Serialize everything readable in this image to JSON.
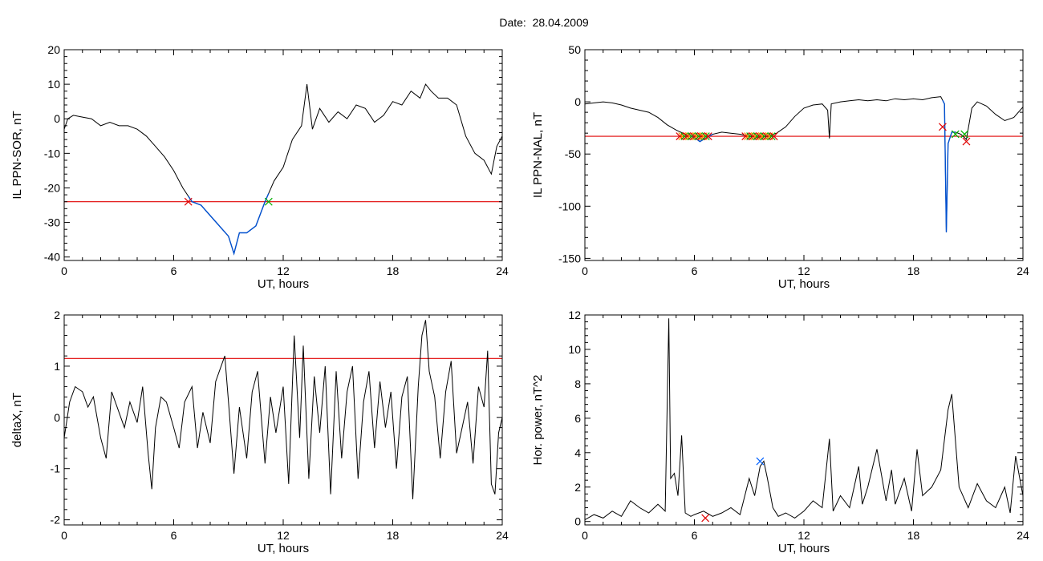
{
  "header": {
    "title": "Date:  28.04.2009"
  },
  "colors": {
    "trace": "#000000",
    "threshold": "#e00000",
    "highlight": "#0050d0",
    "marker_red": "#e00000",
    "marker_green": "#00b000",
    "marker_orange": "#ff9000",
    "marker_blue": "#0060ff"
  },
  "chart_data": [
    {
      "id": "il-sor",
      "type": "line",
      "title": "",
      "xlabel": "UT, hours",
      "ylabel": "IL PPN-SOR, nT",
      "xlim": [
        0,
        24
      ],
      "ylim": [
        -41,
        20
      ],
      "xticks": [
        0,
        6,
        12,
        18,
        24
      ],
      "yticks": [
        -40,
        -30,
        -20,
        -10,
        0,
        10,
        20
      ],
      "x": [
        0,
        0.2,
        0.5,
        1,
        1.5,
        2,
        2.5,
        3,
        3.5,
        4,
        4.5,
        5,
        5.5,
        6,
        6.5,
        7,
        7.5,
        8,
        8.5,
        9,
        9.3,
        9.6,
        10,
        10.5,
        11,
        11.5,
        12,
        12.5,
        13,
        13.3,
        13.6,
        14,
        14.5,
        15,
        15.5,
        16,
        16.5,
        17,
        17.5,
        18,
        18.5,
        19,
        19.5,
        19.8,
        20.1,
        20.5,
        21,
        21.5,
        22,
        22.5,
        23,
        23.4,
        23.7,
        24
      ],
      "y": [
        -3,
        0,
        1,
        0.5,
        0,
        -2,
        -1,
        -2,
        -2,
        -3,
        -5,
        -8,
        -11,
        -15,
        -20,
        -24,
        -25,
        -28,
        -31,
        -34,
        -39,
        -33,
        -33,
        -31,
        -24,
        -18,
        -14,
        -6,
        -2,
        10,
        -3,
        3,
        -1,
        2,
        0,
        4,
        3,
        -1,
        1,
        5,
        4,
        8,
        6,
        10,
        8,
        6,
        6,
        4,
        -5,
        -10,
        -12,
        -16,
        -8,
        -5
      ],
      "threshold": -24,
      "highlight_range": [
        6.8,
        11.2
      ],
      "markers": [
        {
          "x": 6.8,
          "y": -24,
          "color": "red"
        },
        {
          "x": 11.2,
          "y": -24,
          "color": "green"
        }
      ]
    },
    {
      "id": "il-nal",
      "type": "line",
      "title": "",
      "xlabel": "UT, hours",
      "ylabel": "IL PPN-NAL, nT",
      "xlim": [
        0,
        24
      ],
      "ylim": [
        -152,
        50
      ],
      "xticks": [
        0,
        6,
        12,
        18,
        24
      ],
      "yticks": [
        -150,
        -100,
        -50,
        0,
        50
      ],
      "x": [
        0,
        0.5,
        1,
        1.5,
        2,
        2.5,
        3,
        3.5,
        4,
        4.5,
        5,
        5.5,
        6,
        6.3,
        6.6,
        7,
        7.5,
        8,
        8.5,
        9,
        9.5,
        10,
        10.5,
        11,
        11.5,
        12,
        12.5,
        13,
        13.3,
        13.4,
        13.5,
        14,
        14.5,
        15,
        15.5,
        16,
        16.5,
        17,
        17.5,
        18,
        18.5,
        19,
        19.5,
        19.7,
        19.8,
        19.9,
        20.1,
        20.3,
        20.6,
        20.9,
        21.2,
        21.5,
        22,
        22.5,
        23,
        23.5,
        24
      ],
      "y": [
        -2,
        -1,
        0,
        -1,
        -3,
        -6,
        -8,
        -10,
        -15,
        -22,
        -27,
        -31,
        -34,
        -38,
        -35,
        -31,
        -29,
        -30,
        -31,
        -33,
        -34,
        -33,
        -30,
        -24,
        -14,
        -6,
        -3,
        -2,
        -8,
        -35,
        -2,
        0,
        1,
        2,
        1,
        2,
        1,
        3,
        2,
        3,
        2,
        4,
        5,
        -2,
        -125,
        -40,
        -29,
        -29,
        -31,
        -36,
        -6,
        0,
        -4,
        -12,
        -18,
        -15,
        -5
      ],
      "threshold": -33,
      "highlight_ranges": [
        [
          5.6,
          7
        ],
        [
          19.6,
          20.3
        ]
      ],
      "marker_groups": [
        {
          "x_from": 5.2,
          "x_to": 6.8,
          "y": -33
        },
        {
          "x_from": 8.8,
          "x_to": 10.4,
          "y": -33
        }
      ],
      "markers": [
        {
          "x": 19.6,
          "y": -24,
          "color": "red"
        },
        {
          "x": 20.3,
          "y": -31,
          "color": "green"
        },
        {
          "x": 20.8,
          "y": -31,
          "color": "green"
        },
        {
          "x": 20.9,
          "y": -38,
          "color": "red"
        }
      ]
    },
    {
      "id": "deltax",
      "type": "line",
      "title": "",
      "xlabel": "UT, hours",
      "ylabel": "deltaX, nT",
      "xlim": [
        0,
        24
      ],
      "ylim": [
        -2.1,
        2
      ],
      "xticks": [
        0,
        6,
        12,
        18,
        24
      ],
      "yticks": [
        -2,
        -1,
        0,
        1,
        2
      ],
      "x": [
        0,
        0.3,
        0.6,
        1,
        1.3,
        1.6,
        2,
        2.3,
        2.6,
        3,
        3.3,
        3.6,
        4,
        4.3,
        4.6,
        4.8,
        5,
        5.3,
        5.6,
        6,
        6.3,
        6.6,
        7,
        7.3,
        7.6,
        8,
        8.3,
        8.6,
        8.8,
        9,
        9.3,
        9.6,
        10,
        10.3,
        10.6,
        11,
        11.3,
        11.6,
        12,
        12.3,
        12.6,
        12.9,
        13.1,
        13.4,
        13.7,
        14,
        14.3,
        14.6,
        14.9,
        15.2,
        15.5,
        15.8,
        16.1,
        16.4,
        16.7,
        17,
        17.3,
        17.6,
        17.9,
        18.2,
        18.5,
        18.8,
        19.1,
        19.4,
        19.6,
        19.8,
        20,
        20.3,
        20.6,
        20.9,
        21.2,
        21.5,
        21.8,
        22.1,
        22.4,
        22.7,
        23,
        23.2,
        23.4,
        23.6,
        23.8,
        24
      ],
      "y": [
        -0.4,
        0.3,
        0.6,
        0.5,
        0.2,
        0.4,
        -0.4,
        -0.8,
        0.5,
        0.1,
        -0.2,
        0.3,
        -0.1,
        0.6,
        -0.7,
        -1.4,
        -0.2,
        0.4,
        0.3,
        -0.2,
        -0.6,
        0.3,
        0.6,
        -0.6,
        0.1,
        -0.5,
        0.7,
        1.0,
        1.2,
        0.3,
        -1.1,
        0.2,
        -0.8,
        0.5,
        0.9,
        -0.9,
        0.4,
        -0.3,
        0.6,
        -1.3,
        1.6,
        -0.4,
        1.4,
        -1.2,
        0.8,
        -0.3,
        1.0,
        -1.5,
        0.9,
        -0.8,
        0.5,
        1.0,
        -1.2,
        0.3,
        0.9,
        -0.6,
        0.7,
        -0.2,
        0.5,
        -1.0,
        0.4,
        0.8,
        -1.6,
        0.6,
        1.6,
        1.9,
        0.9,
        0.4,
        -0.8,
        0.5,
        1.1,
        -0.7,
        -0.2,
        0.3,
        -0.9,
        0.6,
        0.2,
        1.3,
        -1.3,
        -1.5,
        -0.3,
        0.0
      ],
      "threshold": 1.15
    },
    {
      "id": "hor-power",
      "type": "line",
      "title": "",
      "xlabel": "UT, hours",
      "ylabel": "Hor. power, nT^2",
      "xlim": [
        0,
        24
      ],
      "ylim": [
        -0.2,
        12
      ],
      "xticks": [
        0,
        6,
        12,
        18,
        24
      ],
      "yticks": [
        0,
        2,
        4,
        6,
        8,
        10,
        12
      ],
      "x": [
        0,
        0.5,
        1,
        1.5,
        2,
        2.5,
        3,
        3.5,
        4,
        4.4,
        4.6,
        4.7,
        4.9,
        5.1,
        5.3,
        5.5,
        5.8,
        6,
        6.5,
        7,
        7.5,
        8,
        8.5,
        9,
        9.3,
        9.6,
        9.8,
        10,
        10.3,
        10.6,
        11,
        11.5,
        12,
        12.5,
        13,
        13.4,
        13.6,
        14,
        14.5,
        15,
        15.2,
        15.5,
        16,
        16.5,
        16.8,
        17,
        17.5,
        17.9,
        18.2,
        18.5,
        19,
        19.5,
        19.9,
        20.1,
        20.5,
        21,
        21.5,
        22,
        22.5,
        23,
        23.3,
        23.6,
        24
      ],
      "y": [
        0.1,
        0.4,
        0.2,
        0.6,
        0.3,
        1.2,
        0.8,
        0.5,
        1.0,
        0.6,
        11.8,
        2.5,
        2.8,
        1.5,
        5.0,
        0.5,
        0.3,
        0.4,
        0.6,
        0.3,
        0.5,
        0.8,
        0.4,
        2.5,
        1.5,
        3.2,
        3.5,
        2.5,
        0.8,
        0.3,
        0.5,
        0.2,
        0.6,
        1.2,
        0.8,
        4.8,
        0.6,
        1.5,
        0.8,
        3.2,
        1.0,
        2.0,
        4.2,
        1.2,
        3.0,
        1.0,
        2.5,
        0.6,
        4.2,
        1.5,
        2.0,
        3.0,
        6.5,
        7.4,
        2.0,
        0.8,
        2.2,
        1.2,
        0.8,
        2.0,
        0.5,
        3.8,
        1.5
      ],
      "markers": [
        {
          "x": 6.6,
          "y": 0.2,
          "color": "red"
        },
        {
          "x": 9.6,
          "y": 3.5,
          "color": "blue"
        }
      ]
    }
  ]
}
